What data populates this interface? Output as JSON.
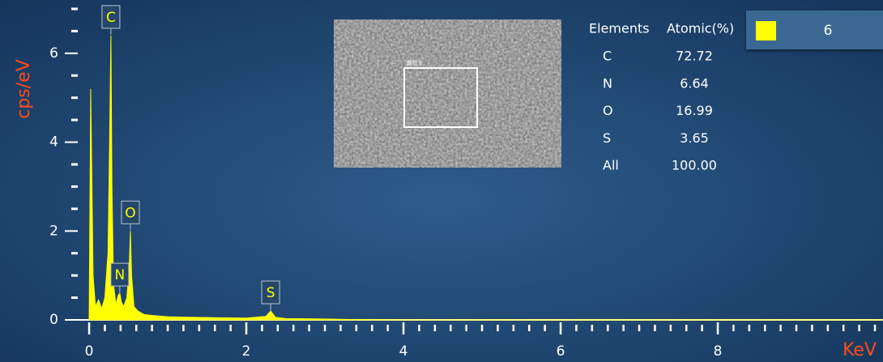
{
  "chart_data": {
    "type": "area",
    "y_label": "cps/eV",
    "x_label": "KeV",
    "xlim": [
      -0.15,
      10.1
    ],
    "ylim": [
      0,
      7.2
    ],
    "xticks": [
      0,
      2,
      4,
      6,
      8
    ],
    "yticks": [
      0,
      2,
      4,
      6
    ],
    "x_minor_ticks": [
      0.2,
      0.4,
      0.6,
      0.8,
      1,
      1.2,
      1.4,
      1.6,
      1.8,
      2.2,
      2.4,
      2.6,
      2.8,
      3,
      3.2,
      3.4,
      3.6,
      3.8,
      4.2,
      4.4,
      4.6,
      4.8,
      5,
      5.2,
      5.4,
      5.6,
      5.8,
      6.2,
      6.4,
      6.6,
      6.8,
      7,
      7.2,
      7.4,
      7.6,
      7.8,
      8.2,
      8.4,
      8.6,
      8.8,
      9,
      9.2,
      9.4,
      9.6,
      9.8,
      10
    ],
    "y_minor_ticks": [
      0.5,
      1,
      1.5,
      2.5,
      3,
      3.5,
      4.5,
      5,
      5.5,
      6.5,
      7
    ],
    "series": [
      {
        "name": "6",
        "color": "#ffff00",
        "x": [
          0,
          0.02,
          0.05,
          0.08,
          0.12,
          0.16,
          0.2,
          0.24,
          0.26,
          0.277,
          0.29,
          0.31,
          0.34,
          0.37,
          0.39,
          0.41,
          0.44,
          0.48,
          0.51,
          0.525,
          0.54,
          0.57,
          0.62,
          0.7,
          0.8,
          1.0,
          1.3,
          1.6,
          2.0,
          2.25,
          2.31,
          2.37,
          2.5,
          3.0,
          3.3,
          4,
          6,
          8,
          10.1
        ],
        "values": [
          0,
          5.2,
          1.0,
          0.3,
          0.45,
          0.25,
          0.5,
          1.5,
          4.0,
          6.4,
          3.0,
          0.8,
          0.35,
          0.55,
          0.6,
          0.4,
          0.3,
          0.5,
          1.2,
          2.0,
          1.0,
          0.3,
          0.2,
          0.12,
          0.1,
          0.07,
          0.06,
          0.05,
          0.04,
          0.08,
          0.2,
          0.06,
          0.03,
          0.02,
          0.01,
          0,
          0,
          0,
          0
        ]
      }
    ],
    "peak_labels": [
      {
        "label": "C",
        "x": 0.277,
        "y": 6.4
      },
      {
        "label": "N",
        "x": 0.39,
        "y": 0.6
      },
      {
        "label": "O",
        "x": 0.525,
        "y": 2.0
      },
      {
        "label": "S",
        "x": 2.31,
        "y": 0.2
      }
    ],
    "inset_label": "谱图 6",
    "table": {
      "header": [
        "Elements",
        "Atomic(%)"
      ],
      "rows": [
        [
          "C",
          "72.72"
        ],
        [
          "N",
          "6.64"
        ],
        [
          "O",
          "16.99"
        ],
        [
          "S",
          "3.65"
        ],
        [
          "All",
          "100.00"
        ]
      ]
    }
  }
}
